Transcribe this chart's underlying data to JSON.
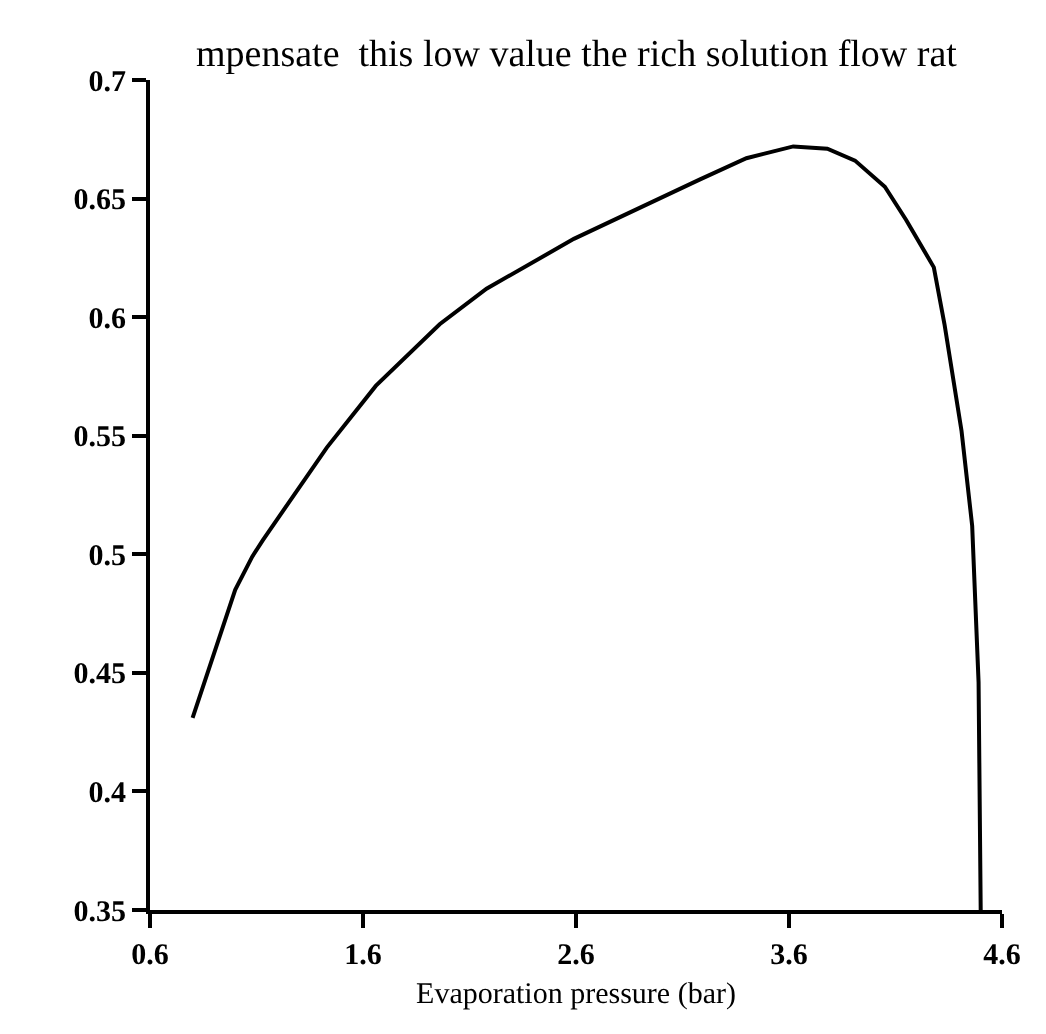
{
  "chart_data": {
    "type": "line",
    "xlabel": "Evaporation pressure (bar)",
    "annotations": [
      "mpensate  this low value the rich solution flow rat"
    ],
    "x": [
      0.8,
      1.0,
      1.08,
      1.13,
      1.43,
      1.66,
      1.96,
      2.18,
      2.59,
      3.18,
      3.4,
      3.62,
      3.78,
      3.91,
      4.05,
      4.15,
      4.28,
      4.33,
      4.41,
      4.46,
      4.49,
      4.5
    ],
    "series": [
      {
        "color": "#000000",
        "values": [
          0.431,
          0.485,
          0.499,
          0.506,
          0.545,
          0.571,
          0.597,
          0.612,
          0.633,
          0.658,
          0.667,
          0.672,
          0.671,
          0.666,
          0.655,
          0.641,
          0.621,
          0.597,
          0.552,
          0.512,
          0.446,
          0.35
        ]
      }
    ],
    "xlim": [
      0.6,
      4.6
    ],
    "xticks": [
      0.6,
      1.6,
      2.6,
      3.6,
      4.6
    ],
    "ylim": [
      0.35,
      0.7
    ],
    "yticks": [
      0.35,
      0.4,
      0.45,
      0.5,
      0.55,
      0.6,
      0.65,
      0.7
    ],
    "marker": "none",
    "line_style": "solid"
  }
}
